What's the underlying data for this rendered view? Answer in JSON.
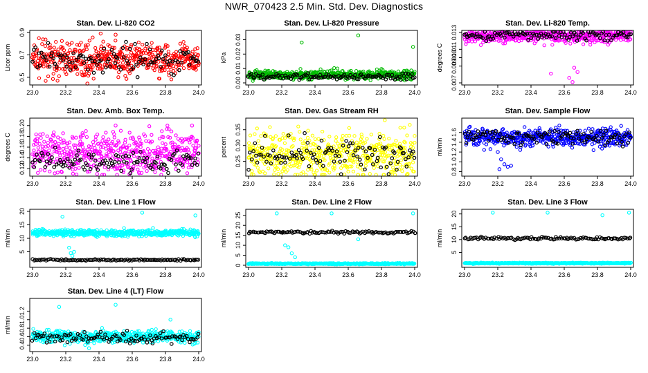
{
  "page_title": "NWR_070423  2.5 Min. Std. Dev. Diagnostics",
  "colors": {
    "red": "#ff0000",
    "green": "#00bb00",
    "magenta": "#ff00ff",
    "yellow": "#ffff00",
    "blue": "#0000ff",
    "cyan": "#00ffff",
    "black": "#000000"
  },
  "chart_data": [
    {
      "type": "scatter",
      "title": "Stan. Dev. Li-820 CO2",
      "ylabel": "Licor ppm",
      "color": "#ff0000",
      "xlim": [
        23.0,
        24.0
      ],
      "ylim": [
        0.45,
        0.9
      ],
      "xticks": [
        "23.0",
        "23.2",
        "23.4",
        "23.6",
        "23.8",
        "24.0"
      ],
      "yticks": [
        "0.5",
        "0.7",
        "0.9"
      ],
      "series": [
        {
          "name": "main",
          "color": "#ff0000",
          "center": 0.66,
          "spread": 0.07
        },
        {
          "name": "reference",
          "color": "#000000",
          "center": 0.66,
          "spread": 0.06
        }
      ],
      "outliers": [
        [
          23.33,
          0.44
        ],
        [
          23.41,
          0.89
        ],
        [
          23.5,
          0.88
        ]
      ]
    },
    {
      "type": "scatter",
      "title": "Stan. Dev. Li-820 Pressure",
      "ylabel": "kPa",
      "color": "#00bb00",
      "xlim": [
        23.0,
        24.0
      ],
      "ylim": [
        0.0,
        0.035
      ],
      "xticks": [
        "23.0",
        "23.2",
        "23.4",
        "23.6",
        "23.8",
        "24.0"
      ],
      "yticks": [
        "0.00",
        "0.01",
        "0.02",
        "0.03"
      ],
      "series": [
        {
          "name": "main",
          "color": "#00bb00",
          "center": 0.0055,
          "spread": 0.0015
        },
        {
          "name": "reference",
          "color": "#000000",
          "center": 0.0045,
          "spread": 0.0012
        }
      ],
      "outliers": [
        [
          23.32,
          0.028
        ],
        [
          23.66,
          0.033
        ],
        [
          23.99,
          0.025
        ]
      ]
    },
    {
      "type": "scatter",
      "title": "Stan. Dev. Li-820 Temp.",
      "ylabel": "degrees C",
      "color": "#ff00ff",
      "xlim": [
        23.0,
        24.0
      ],
      "ylim": [
        0.007,
        0.013
      ],
      "xticks": [
        "23.0",
        "23.2",
        "23.4",
        "23.6",
        "23.8",
        "24.0"
      ],
      "yticks": [
        "0.007",
        "0.009",
        "0.010",
        "0.011",
        "0.013"
      ],
      "series": [
        {
          "name": "main",
          "color": "#ff00ff",
          "center": 0.0126,
          "spread": 0.0004
        },
        {
          "name": "reference",
          "color": "#000000",
          "center": 0.0127,
          "spread": 0.0003
        }
      ],
      "outliers": [
        [
          23.52,
          0.0081
        ],
        [
          23.63,
          0.0076
        ],
        [
          23.65,
          0.0071
        ],
        [
          23.68,
          0.0083
        ],
        [
          23.66,
          0.0088
        ]
      ]
    },
    {
      "type": "scatter",
      "title": "Stan. Dev. Amb. Box Temp.",
      "ylabel": "degrees C",
      "color": "#ff00ff",
      "xlim": [
        23.0,
        24.0
      ],
      "ylim": [
        0.11,
        0.21
      ],
      "xticks": [
        "23.0",
        "23.2",
        "23.4",
        "23.6",
        "23.8",
        "24.0"
      ],
      "yticks": [
        "0.12",
        "0.14",
        "0.16",
        "0.18",
        "0.20"
      ],
      "series": [
        {
          "name": "main",
          "color": "#ff00ff",
          "center": 0.15,
          "spread": 0.02
        },
        {
          "name": "reference",
          "color": "#000000",
          "center": 0.135,
          "spread": 0.01
        }
      ],
      "outliers": [
        [
          23.5,
          0.2
        ],
        [
          23.96,
          0.2
        ]
      ]
    },
    {
      "type": "scatter",
      "title": "Stan. Dev. Gas Stream RH",
      "ylabel": "percent",
      "color": "#ffff00",
      "xlim": [
        23.0,
        24.0
      ],
      "ylim": [
        0.21,
        0.38
      ],
      "xticks": [
        "23.0",
        "23.2",
        "23.4",
        "23.6",
        "23.8",
        "24.0"
      ],
      "yticks": [
        "0.25",
        "0.30",
        "0.35"
      ],
      "series": [
        {
          "name": "main",
          "color": "#ffff00",
          "center": 0.27,
          "spread": 0.035
        },
        {
          "name": "reference",
          "color": "#000000",
          "center": 0.27,
          "spread": 0.025
        }
      ],
      "outliers": [
        [
          23.82,
          0.38
        ]
      ]
    },
    {
      "type": "scatter",
      "title": "Stan. Dev. Sample Flow",
      "ylabel": "ml/min",
      "color": "#0000ff",
      "xlim": [
        23.0,
        24.0
      ],
      "ylim": [
        0.75,
        1.85
      ],
      "xticks": [
        "23.0",
        "23.2",
        "23.4",
        "23.6",
        "23.8",
        "24.0"
      ],
      "yticks": [
        "0.8",
        "1.0",
        "1.2",
        "1.4",
        "1.6"
      ],
      "series": [
        {
          "name": "main",
          "color": "#0000ff",
          "center": 1.5,
          "spread": 0.09
        },
        {
          "name": "reference",
          "color": "#000000",
          "center": 1.5,
          "spread": 0.08
        }
      ],
      "outliers": [
        [
          23.2,
          1.2
        ],
        [
          23.22,
          1.05
        ],
        [
          23.24,
          0.95
        ],
        [
          23.26,
          0.9
        ],
        [
          23.28,
          0.92
        ],
        [
          23.21,
          0.85
        ]
      ]
    },
    {
      "type": "scatter",
      "title": "Stan. Dev. Line 1 Flow",
      "ylabel": "ml/min",
      "color": "#00ffff",
      "xlim": [
        23.0,
        24.0
      ],
      "ylim": [
        0.0,
        20.0
      ],
      "xticks": [
        "23.0",
        "23.2",
        "23.4",
        "23.6",
        "23.8",
        "24.0"
      ],
      "yticks": [
        "5",
        "10",
        "15",
        "20"
      ],
      "series": [
        {
          "name": "main",
          "color": "#00ffff",
          "center": 12.0,
          "spread": 0.6
        },
        {
          "name": "reference",
          "color": "#000000",
          "center": 2.0,
          "spread": 0.15
        }
      ],
      "outliers": [
        [
          23.18,
          18.0
        ],
        [
          23.22,
          6.5
        ],
        [
          23.23,
          4.5
        ],
        [
          23.24,
          3.5
        ],
        [
          23.25,
          5.0
        ],
        [
          23.66,
          19.5
        ],
        [
          23.98,
          18.5
        ]
      ]
    },
    {
      "type": "scatter",
      "title": "Stan. Dev. Line 2 Flow",
      "ylabel": "ml/min",
      "color": "#00ffff",
      "xlim": [
        23.0,
        24.0
      ],
      "ylim": [
        0.0,
        27.0
      ],
      "xticks": [
        "23.0",
        "23.2",
        "23.4",
        "23.6",
        "23.8",
        "24.0"
      ],
      "yticks": [
        "0",
        "5",
        "10",
        "15",
        "20",
        "25"
      ],
      "series": [
        {
          "name": "main",
          "color": "#00ffff",
          "center": 0.8,
          "spread": 0.15
        },
        {
          "name": "reference",
          "color": "#000000",
          "center": 16.5,
          "spread": 0.3
        }
      ],
      "outliers": [
        [
          23.17,
          26.0
        ],
        [
          23.22,
          10.0
        ],
        [
          23.24,
          9.0
        ],
        [
          23.26,
          6.0
        ],
        [
          23.28,
          4.0
        ],
        [
          23.5,
          26.0
        ],
        [
          23.66,
          13.0
        ],
        [
          23.99,
          26.0
        ]
      ]
    },
    {
      "type": "scatter",
      "title": "Stan. Dev. Line 3 Flow",
      "ylabel": "ml/min",
      "color": "#00ffff",
      "xlim": [
        23.0,
        24.0
      ],
      "ylim": [
        0.0,
        21.0
      ],
      "xticks": [
        "23.0",
        "23.2",
        "23.4",
        "23.6",
        "23.8",
        "24.0"
      ],
      "yticks": [
        "5",
        "10",
        "15",
        "20"
      ],
      "series": [
        {
          "name": "main",
          "color": "#00ffff",
          "center": 0.8,
          "spread": 0.1
        },
        {
          "name": "reference",
          "color": "#000000",
          "center": 10.5,
          "spread": 0.25
        }
      ],
      "outliers": [
        [
          23.17,
          20.5
        ],
        [
          23.5,
          20.5
        ],
        [
          23.83,
          19.5
        ],
        [
          23.99,
          20.5
        ]
      ]
    },
    {
      "type": "scatter",
      "title": "Stan. Dev. Line 4 (LT) Flow",
      "ylabel": "ml/min",
      "color": "#00ffff",
      "xlim": [
        23.0,
        24.0
      ],
      "ylim": [
        0.3,
        1.45
      ],
      "xticks": [
        "23.0",
        "23.2",
        "23.4",
        "23.6",
        "23.8",
        "24.0"
      ],
      "yticks": [
        "0.4",
        "0.6",
        "0.8",
        "1.0",
        "1.2"
      ],
      "series": [
        {
          "name": "main",
          "color": "#00ffff",
          "center": 0.6,
          "spread": 0.07
        },
        {
          "name": "reference",
          "color": "#000000",
          "center": 0.58,
          "spread": 0.06
        }
      ],
      "outliers": [
        [
          23.16,
          1.3
        ],
        [
          23.5,
          1.35
        ],
        [
          23.83,
          1.0
        ],
        [
          23.34,
          0.33
        ]
      ]
    }
  ]
}
